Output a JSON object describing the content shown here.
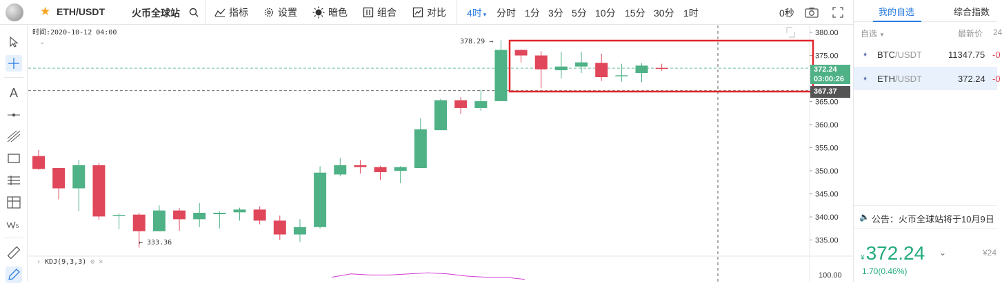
{
  "header": {
    "pair": "ETH/USDT",
    "exchange": "火币全球站",
    "toolbar": {
      "indicators": "指标",
      "settings": "设置",
      "dark": "暗色",
      "combo": "组合",
      "compare": "对比"
    },
    "timeframes": {
      "active": "4时",
      "items": [
        "分时",
        "1分",
        "3分",
        "5分",
        "10分",
        "15分",
        "30分",
        "1时"
      ]
    },
    "seconds": "0秒"
  },
  "chart": {
    "time_label": "时间:2020-10-12 04:00",
    "high_label": "378.29 →",
    "low_label": "← 333.36",
    "indicator_label": "KDJ(9,3,3)",
    "price_badge": "372.24",
    "countdown_badge": "03:00:26",
    "dashed_badge": "367.37",
    "kdj_axis": "100.00",
    "colors": {
      "up": "#4fb186",
      "down": "#e0475a",
      "highlight": "#e0252a"
    }
  },
  "chart_data": {
    "type": "candlestick",
    "ylim": [
      331.5,
      381.5
    ],
    "y_ticks": [
      "380.00",
      "375.00",
      "370.00",
      "365.00",
      "360.00",
      "355.00",
      "350.00",
      "345.00",
      "340.00",
      "335.00"
    ],
    "last_price": 372.24,
    "reference_price": 367.37,
    "ohlc": [
      [
        353.2,
        354.5,
        350.2,
        350.4
      ],
      [
        350.6,
        350.6,
        343.8,
        346.2
      ],
      [
        346.2,
        352.4,
        341.2,
        351.2
      ],
      [
        351.2,
        351.7,
        339.4,
        340.1
      ],
      [
        340.2,
        340.8,
        337.3,
        340.4
      ],
      [
        340.5,
        340.9,
        333.36,
        336.9
      ],
      [
        336.9,
        342.5,
        336.9,
        341.4
      ],
      [
        341.4,
        341.9,
        337.0,
        339.5
      ],
      [
        339.5,
        343.0,
        337.8,
        340.9
      ],
      [
        340.6,
        341.2,
        337.5,
        340.9
      ],
      [
        341.0,
        342.0,
        339.2,
        341.6
      ],
      [
        341.6,
        342.3,
        338.4,
        339.2
      ],
      [
        339.2,
        340.3,
        335.0,
        336.2
      ],
      [
        336.2,
        339.5,
        334.6,
        337.8
      ],
      [
        337.8,
        351.0,
        337.5,
        349.6
      ],
      [
        349.2,
        352.8,
        348.8,
        351.2
      ],
      [
        351.2,
        352.3,
        349.4,
        350.8
      ],
      [
        350.8,
        351.1,
        348.0,
        349.7
      ],
      [
        350.0,
        351.0,
        347.3,
        350.8
      ],
      [
        350.6,
        361.4,
        350.6,
        359.0
      ],
      [
        358.8,
        365.6,
        358.8,
        365.3
      ],
      [
        365.3,
        366.0,
        362.3,
        363.6
      ],
      [
        363.6,
        367.6,
        363.0,
        365.1
      ],
      [
        365.1,
        378.29,
        365.1,
        376.2
      ],
      [
        376.2,
        376.3,
        373.5,
        375.0
      ],
      [
        375.0,
        375.9,
        367.9,
        372.0
      ],
      [
        371.8,
        375.8,
        370.0,
        372.6
      ],
      [
        372.6,
        375.8,
        371.2,
        373.5
      ],
      [
        373.4,
        375.4,
        369.5,
        370.3
      ],
      [
        370.6,
        373.2,
        369.3,
        370.7
      ],
      [
        371.2,
        373.3,
        369.2,
        372.8
      ],
      [
        372.3,
        373.2,
        371.7,
        372.24
      ]
    ],
    "kdj_j": [
      96,
      99,
      98,
      98,
      99,
      100,
      99,
      97,
      96,
      96,
      94
    ]
  },
  "sidebar": {
    "tabs": [
      "我的自选",
      "综合指数"
    ],
    "list_header": {
      "label": "自选",
      "price": "最新价",
      "change": "24"
    },
    "items": [
      {
        "symbol": "BTC",
        "quote": "/USDT",
        "price": "11347.75",
        "change": "-0"
      },
      {
        "symbol": "ETH",
        "quote": "/USDT",
        "price": "372.24",
        "change": "-0"
      }
    ],
    "announcement": "公告：火币全球站将于10月9日",
    "current": {
      "currency": "¥",
      "price": "372.24",
      "change": "1.70(0.46%)",
      "right_label": "¥24"
    }
  }
}
